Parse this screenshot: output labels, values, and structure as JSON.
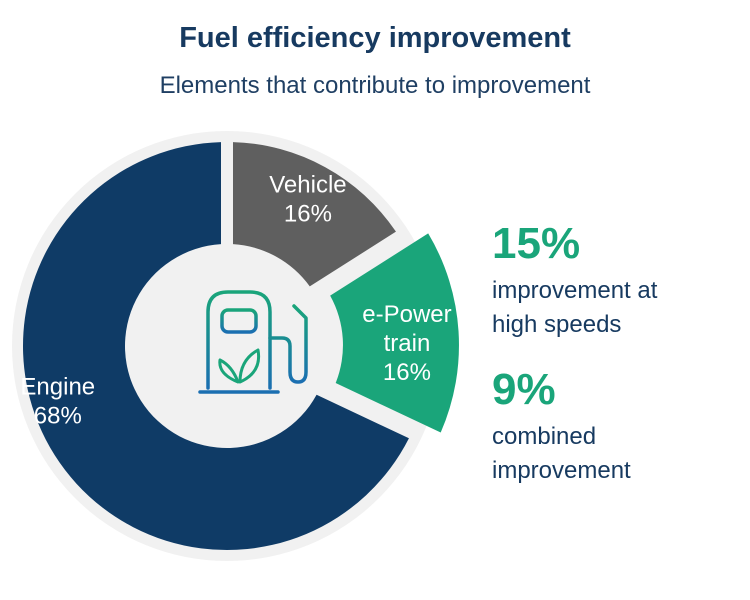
{
  "chart_data": {
    "type": "pie",
    "title": "Fuel efficiency improvement",
    "subtitle": "Elements that contribute to improvement",
    "slices": [
      {
        "label": "Vehicle",
        "value": 16,
        "display": "16%",
        "color": "#5f5f5f"
      },
      {
        "label": "e-Power train",
        "value": 16,
        "display": "16%",
        "color": "#1aa57a"
      },
      {
        "label": "Engine",
        "value": 68,
        "display": "68%",
        "color": "#0f3b66"
      }
    ],
    "center_icon": "fuel-pump-leaf-icon"
  },
  "stats": [
    {
      "value": "15%",
      "label_lines": [
        "improvement at",
        "high speeds"
      ]
    },
    {
      "value": "9%",
      "label_lines": [
        "combined",
        "improvement"
      ]
    }
  ]
}
